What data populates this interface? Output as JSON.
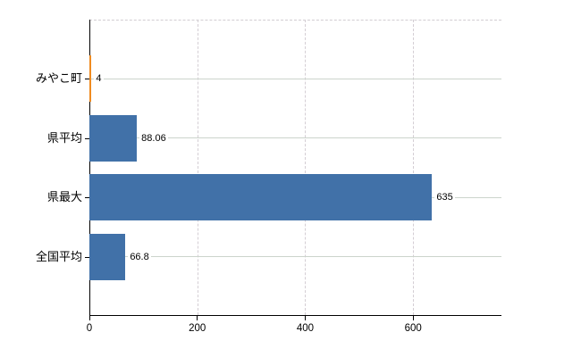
{
  "chart_data": {
    "type": "bar",
    "orientation": "horizontal",
    "title": "",
    "xlabel": "",
    "ylabel": "",
    "categories": [
      "みやこ町",
      "県平均",
      "県最大",
      "全国平均"
    ],
    "values": [
      4,
      88.06,
      635,
      66.8
    ],
    "value_labels": [
      "4",
      "88.06",
      "635",
      "66.8"
    ],
    "bar_colors": [
      "#ef8b20",
      "#4171a8",
      "#4171a8",
      "#4171a8"
    ],
    "x_ticks": [
      0,
      200,
      400,
      600
    ],
    "x_tick_labels": [
      "0",
      "200",
      "400",
      "600"
    ],
    "xlim": [
      0,
      762
    ],
    "grid": true,
    "legend": "none"
  },
  "colors": {
    "bar_blue": "#4171a8",
    "bar_orange": "#ef8b20",
    "axis": "#000000",
    "row_line": "#ccd4cc",
    "gridline": "#d4ced4",
    "background": "#ffffff",
    "text": "#000000"
  }
}
